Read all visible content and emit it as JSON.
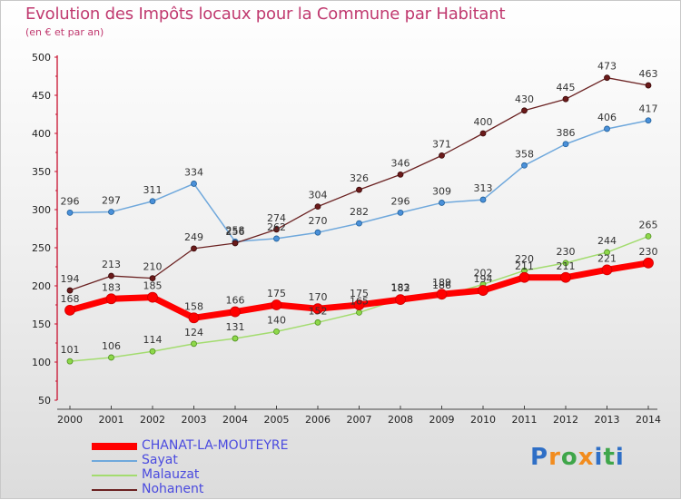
{
  "title": "Evolution des Impôts locaux pour la Commune par Habitant",
  "subtitle": "(en € et par an)",
  "logo": "Proxiti",
  "colors": {
    "title": "#c0396f",
    "legend_text": "#4a4adf",
    "chanat": "#ff0000",
    "sayat": "#6fa8dc",
    "malauzat": "#a3dc6f",
    "nohanent": "#6b2222"
  },
  "chart_data": {
    "type": "line",
    "title": "Evolution des Impôts locaux pour la Commune par Habitant",
    "ylabel": "(en € et par an)",
    "xlabel": "",
    "ylim": [
      50,
      500
    ],
    "yticks": [
      50,
      100,
      150,
      200,
      250,
      300,
      350,
      400,
      450,
      500
    ],
    "x": [
      2000,
      2001,
      2002,
      2003,
      2004,
      2005,
      2006,
      2007,
      2008,
      2009,
      2010,
      2011,
      2012,
      2013,
      2014
    ],
    "grid": false,
    "legend_position": "bottom-left",
    "series": [
      {
        "name": "CHANAT-LA-MOUTEYRE",
        "values": [
          168,
          183,
          185,
          158,
          166,
          175,
          170,
          175,
          182,
          189,
          194,
          211,
          211,
          221,
          230
        ]
      },
      {
        "name": "Sayat",
        "values": [
          296,
          297,
          311,
          334,
          258,
          262,
          270,
          282,
          296,
          309,
          313,
          358,
          386,
          406,
          417
        ]
      },
      {
        "name": "Malauzat",
        "values": [
          101,
          106,
          114,
          124,
          131,
          140,
          152,
          165,
          183,
          186,
          202,
          220,
          230,
          244,
          265
        ]
      },
      {
        "name": "Nohanent",
        "values": [
          194,
          213,
          210,
          249,
          256,
          274,
          304,
          326,
          346,
          371,
          400,
          430,
          445,
          473,
          463
        ]
      }
    ]
  }
}
